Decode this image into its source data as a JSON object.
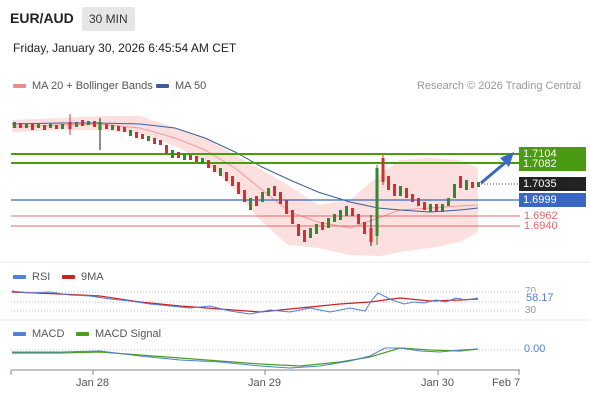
{
  "header": {
    "symbol": "EUR/AUD",
    "timeframe": "30 MIN",
    "datetime": "Friday, January 30, 2026 6:45:54 AM CET"
  },
  "legend": {
    "bollinger": "MA 20 + Bollinger Bands",
    "ma50": "MA 50",
    "credit": "Research © 2026 Trading Central"
  },
  "price_labels": {
    "resistance_top": "1.7104",
    "resistance_bottom": "1.7082",
    "current": "1.7035",
    "pivot": "1.6999",
    "support_1": "1.6962",
    "support_2": "1.6940"
  },
  "rsi": {
    "name": "RSI",
    "ma_name": "9MA",
    "level_70": "70",
    "level_30": "30",
    "value": "58.17"
  },
  "macd": {
    "name": "MACD",
    "signal_name": "MACD Signal",
    "value": "0.00"
  },
  "x_axis": [
    "Jan 28",
    "Jan 29",
    "Jan 30",
    "Feb 7"
  ],
  "colors": {
    "resistance": "#4a9a12",
    "pivot": "#3a67c4",
    "support": "#e26b6b",
    "bollinger_fill": "#fbd9d9",
    "ma20": "#f29a9a",
    "ma50": "#3b5e9b",
    "candle_up": "#2f8a2f",
    "candle_down": "#d13030",
    "rsi_line": "#4f7fd6",
    "rsi_ma": "#c82323",
    "macd_line": "#4f7fd6",
    "macd_signal": "#4d9e1d"
  }
}
